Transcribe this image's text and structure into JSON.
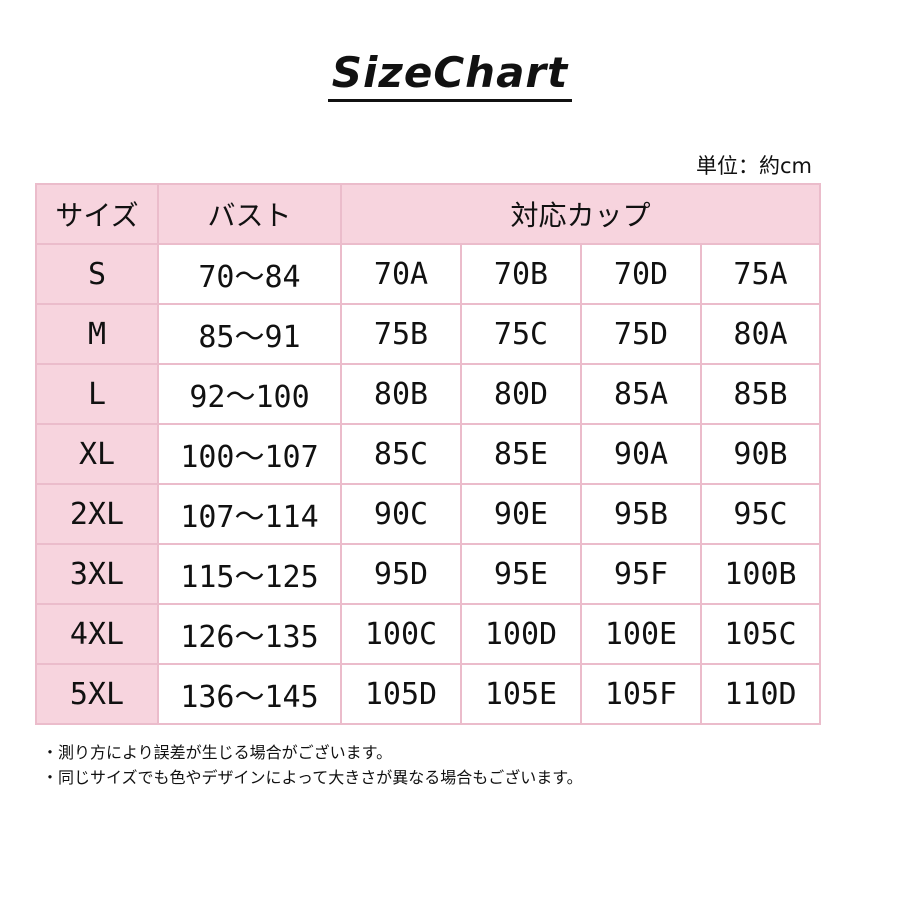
{
  "title": "SizeChart",
  "unit": "単位：約cm",
  "headers": {
    "size": "サイズ",
    "bust": "バスト",
    "cup": "対応カップ"
  },
  "rows": [
    {
      "size": "S",
      "bust": "70～84",
      "cups": [
        "70A",
        "70B",
        "70D",
        "75A"
      ]
    },
    {
      "size": "M",
      "bust": "85～91",
      "cups": [
        "75B",
        "75C",
        "75D",
        "80A"
      ]
    },
    {
      "size": "L",
      "bust": "92～100",
      "cups": [
        "80B",
        "80D",
        "85A",
        "85B"
      ]
    },
    {
      "size": "XL",
      "bust": "100～107",
      "cups": [
        "85C",
        "85E",
        "90A",
        "90B"
      ]
    },
    {
      "size": "2XL",
      "bust": "107～114",
      "cups": [
        "90C",
        "90E",
        "95B",
        "95C"
      ]
    },
    {
      "size": "3XL",
      "bust": "115～125",
      "cups": [
        "95D",
        "95E",
        "95F",
        "100B"
      ]
    },
    {
      "size": "4XL",
      "bust": "126～135",
      "cups": [
        "100C",
        "100D",
        "100E",
        "105C"
      ]
    },
    {
      "size": "5XL",
      "bust": "136～145",
      "cups": [
        "105D",
        "105E",
        "105F",
        "110D"
      ]
    }
  ],
  "notes": [
    "・測り方により誤差が生じる場合がございます。",
    "・同じサイズでも色やデザインによって大きさが異なる場合もございます。"
  ],
  "colors": {
    "header_bg": "#f7d4de",
    "border": "#ebbccb"
  }
}
